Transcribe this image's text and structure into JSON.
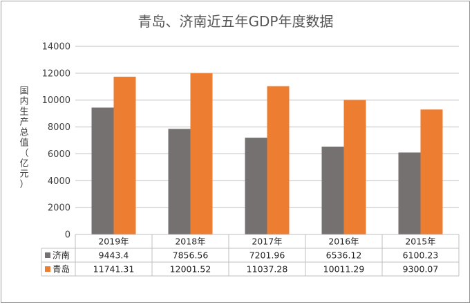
{
  "chart_data": {
    "type": "bar",
    "title": "青岛、济南近五年GDP年度数据",
    "ylabel": "国内生产总值（亿元）",
    "ylim": [
      0,
      14000
    ],
    "yticks": [
      0,
      2000,
      4000,
      6000,
      8000,
      10000,
      12000,
      14000
    ],
    "grid": true,
    "legend": "data-table",
    "categories": [
      "2019年",
      "2018年",
      "2017年",
      "2016年",
      "2015年"
    ],
    "series": [
      {
        "name": "济南",
        "color": "#767171",
        "values": [
          9443.4,
          7856.56,
          7201.96,
          6536.12,
          6100.23
        ],
        "labels": [
          "9443.4",
          "7856.56",
          "7201.96",
          "6536.12",
          "6100.23"
        ]
      },
      {
        "name": "青岛",
        "color": "#ed7d31",
        "values": [
          11741.31,
          12001.52,
          11037.28,
          10011.29,
          9300.07
        ],
        "labels": [
          "11741.31",
          "12001.52",
          "11037.28",
          "10011.29",
          "9300.07"
        ]
      }
    ]
  }
}
